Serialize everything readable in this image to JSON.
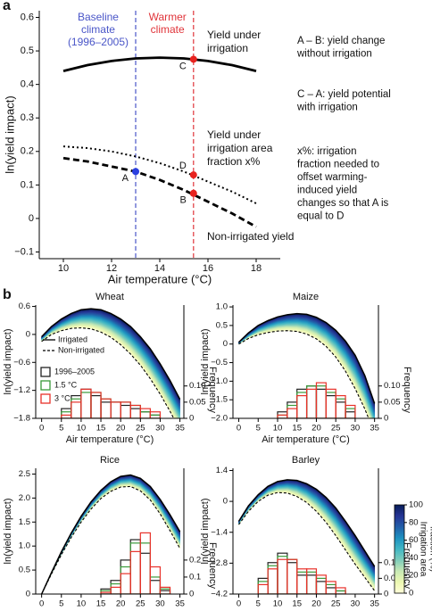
{
  "chart_data": [
    {
      "type": "line",
      "panel_label": "a",
      "xlabel": "Air temperature (°C)",
      "ylabel": "ln(yield impact)",
      "xlim": [
        9,
        19
      ],
      "ylim": [
        -0.12,
        0.62
      ],
      "xticks": [
        10,
        12,
        14,
        16,
        18
      ],
      "yticks": [
        {
          "value": -0.1,
          "label": "−0.1"
        },
        0,
        0.1,
        0.2,
        0.3,
        0.4,
        0.5,
        0.6
      ],
      "x": [
        10,
        11,
        12,
        13,
        14,
        15,
        16,
        17,
        18
      ],
      "series": [
        {
          "name": [
            "Yield under",
            "irrigation"
          ],
          "dash": "solid",
          "color": "#000000",
          "values": [
            0.44,
            0.4575,
            0.47,
            0.4775,
            0.48,
            0.4775,
            0.47,
            0.4575,
            0.44
          ]
        },
        {
          "name": [
            "Yield under",
            "irrigation area",
            "fraction x%"
          ],
          "dash": "dotted",
          "color": "#000000",
          "values": [
            0.215,
            0.21,
            0.2,
            0.185,
            0.165,
            0.14,
            0.11,
            0.08,
            0.045
          ]
        },
        {
          "name": [
            "Non-irrigated yield"
          ],
          "dash": "dashed",
          "color": "#000000",
          "values": [
            0.18,
            0.17,
            0.155,
            0.14,
            0.115,
            0.085,
            0.05,
            0.015,
            -0.025
          ]
        }
      ],
      "vlines": [
        {
          "x": 13,
          "color": "#4a56c8",
          "label": [
            "Baseline",
            "climate",
            "(1996–2005)"
          ]
        },
        {
          "x": 15.4,
          "color": "#e0343a",
          "label": [
            "Warmer",
            "climate"
          ]
        }
      ],
      "points": [
        {
          "label": "A",
          "x": 13,
          "y": 0.14,
          "color": "#2a3fe0",
          "label_side": "below"
        },
        {
          "label": "B",
          "x": 15.4,
          "y": 0.075,
          "color": "#e8231f",
          "label_side": "below"
        },
        {
          "label": "C",
          "x": 15.4,
          "y": 0.475,
          "color": "#e8231f",
          "label_side": "below"
        },
        {
          "label": "D",
          "x": 15.4,
          "y": 0.13,
          "color": "#e8231f",
          "label_side": "above"
        }
      ],
      "notes": [
        [
          "A – B: yield change",
          "without irrigation"
        ],
        [
          "C – A: yield potential",
          "with irrigation"
        ],
        [
          "x%: irrigation",
          "fraction needed to",
          "offset warming-",
          "induced yield",
          "changes so that A is",
          "equal to D"
        ]
      ]
    },
    {
      "type": "line",
      "panel_label": "b",
      "title": "Wheat",
      "xlabel": "Air temperature (°C)",
      "ylabel": "ln(yield impact)",
      "y2label": "Frequency",
      "xlim": [
        -1.5,
        36
      ],
      "ylim": [
        -1.8,
        0.63
      ],
      "xticks": [
        0,
        5,
        10,
        15,
        20,
        25,
        30,
        35
      ],
      "yticks": [
        {
          "value": -1.8,
          "label": "−1.8"
        },
        {
          "value": -1.2,
          "label": "−1.2"
        },
        {
          "value": -0.6,
          "label": "−0.6"
        },
        0,
        0.6
      ],
      "y2lim": [
        0,
        0.35
      ],
      "y2ticks": [
        0,
        0.05,
        {
          "value": 0.1,
          "label": "0.10"
        }
      ],
      "fill": "colorbar",
      "legend": true,
      "x": [
        0,
        2.5,
        5,
        7.5,
        10,
        12.5,
        15,
        17.5,
        20,
        22.5,
        25,
        27.5,
        30,
        32.5,
        35
      ],
      "series": [
        {
          "name": "Irrigated",
          "dash": "solid",
          "color": "#000000",
          "values": [
            -0.05,
            0.17,
            0.33,
            0.45,
            0.53,
            0.55,
            0.53,
            0.45,
            0.33,
            0.17,
            -0.05,
            -0.31,
            -0.63,
            -0.99,
            -1.39
          ]
        },
        {
          "name": "Non-irrigated",
          "dash": "dashed",
          "color": "#000000",
          "values": [
            -0.15,
            0.0,
            0.08,
            0.13,
            0.14,
            0.12,
            0.05,
            -0.06,
            -0.22,
            -0.42,
            -0.66,
            -0.95,
            -1.28,
            -1.65,
            -2.05
          ]
        }
      ],
      "histogram": {
        "bins": [
          5,
          7.5,
          10,
          12.5,
          15,
          17.5,
          20,
          22.5,
          25,
          27.5,
          30
        ],
        "series": [
          {
            "name": "1996–2005",
            "color": "#222222",
            "values": [
              0.03,
              0.07,
              0.09,
              0.07,
              0.05,
              0.05,
              0.04,
              0.03,
              0.02,
              0.01
            ]
          },
          {
            "name": "1.5 °C",
            "color": "#3a9a3a",
            "values": [
              0.02,
              0.06,
              0.08,
              0.08,
              0.06,
              0.05,
              0.05,
              0.04,
              0.02,
              0.01
            ]
          },
          {
            "name": "3 °C",
            "color": "#e8312a",
            "values": [
              0.01,
              0.05,
              0.09,
              0.08,
              0.06,
              0.05,
              0.05,
              0.04,
              0.03,
              0.02
            ]
          }
        ]
      }
    },
    {
      "type": "line",
      "title": "Maize",
      "xlabel": "Air temperature (°C)",
      "ylabel": "ln(yield impact)",
      "y2label": "Frequency",
      "xlim": [
        -1.5,
        36
      ],
      "ylim": [
        -2.0,
        1.05
      ],
      "xticks": [
        0,
        5,
        10,
        15,
        20,
        25,
        30,
        35
      ],
      "yticks": [
        {
          "value": -2,
          "label": "−2.0"
        },
        {
          "value": -1.5,
          "label": "−1.5"
        },
        {
          "value": -1,
          "label": "−1.0"
        },
        {
          "value": -0.5,
          "label": "−0.5"
        },
        0,
        0.5,
        {
          "value": 1,
          "label": "1.0"
        }
      ],
      "y2lim": [
        0,
        0.35
      ],
      "y2ticks": [
        0,
        0.05,
        {
          "value": 0.1,
          "label": "0.10"
        }
      ],
      "fill": "colorbar",
      "x": [
        0,
        2.5,
        5,
        7.5,
        10,
        12.5,
        15,
        17.5,
        20,
        22.5,
        25,
        27.5,
        30,
        32.5,
        35
      ],
      "series": [
        {
          "dash": "solid",
          "color": "#000000",
          "values": [
            0.05,
            0.3,
            0.5,
            0.63,
            0.73,
            0.79,
            0.82,
            0.8,
            0.72,
            0.58,
            0.37,
            0.08,
            -0.3,
            -0.85,
            -1.6
          ]
        },
        {
          "dash": "dashed",
          "color": "#000000",
          "values": [
            0.0,
            0.15,
            0.25,
            0.31,
            0.35,
            0.36,
            0.34,
            0.27,
            0.14,
            -0.06,
            -0.35,
            -0.73,
            -1.2,
            -1.75,
            -2.4
          ]
        }
      ],
      "histogram": {
        "bins": [
          10,
          12.5,
          15,
          17.5,
          20,
          22.5,
          25,
          27.5,
          30
        ],
        "series": [
          {
            "color": "#222222",
            "values": [
              0.02,
              0.05,
              0.09,
              0.1,
              0.09,
              0.07,
              0.05,
              0.02
            ]
          },
          {
            "color": "#3a9a3a",
            "values": [
              0.01,
              0.04,
              0.08,
              0.1,
              0.1,
              0.08,
              0.06,
              0.03
            ]
          },
          {
            "color": "#e8312a",
            "values": [
              0.01,
              0.03,
              0.07,
              0.09,
              0.11,
              0.09,
              0.07,
              0.04
            ]
          }
        ]
      }
    },
    {
      "type": "line",
      "title": "Rice",
      "xlabel": "Air temperature (°C)",
      "ylabel": "ln(yield impact)",
      "y2label": "Frequency",
      "xlim": [
        -1.5,
        36
      ],
      "ylim": [
        0,
        2.62
      ],
      "xticks": [
        0,
        5,
        10,
        15,
        20,
        25,
        30,
        35
      ],
      "yticks": [
        0,
        0.5,
        {
          "value": 1,
          "label": "1.0"
        },
        1.5,
        {
          "value": 2,
          "label": "2.0"
        },
        2.5
      ],
      "y2lim": [
        0,
        0.74
      ],
      "y2ticks": [
        0,
        0.1,
        0.2
      ],
      "fill": "colorbar",
      "x": [
        0,
        2.5,
        5,
        7.5,
        10,
        12.5,
        15,
        17.5,
        20,
        22.5,
        25,
        27.5,
        30,
        32.5,
        35
      ],
      "series": [
        {
          "dash": "solid",
          "color": "#000000",
          "values": [
            0,
            0.45,
            0.88,
            1.27,
            1.62,
            1.92,
            2.16,
            2.34,
            2.45,
            2.48,
            2.41,
            2.24,
            1.97,
            1.65,
            1.3
          ]
        },
        {
          "dash": "dashed",
          "color": "#000000",
          "values": [
            0,
            0.42,
            0.82,
            1.18,
            1.5,
            1.77,
            1.99,
            2.14,
            2.23,
            2.24,
            2.15,
            1.96,
            1.67,
            1.32,
            0.95
          ]
        }
      ],
      "histogram": {
        "bins": [
          15,
          17.5,
          20,
          22.5,
          25,
          27.5,
          30,
          32.5
        ],
        "series": [
          {
            "color": "#222222",
            "values": [
              0.03,
              0.08,
              0.2,
              0.32,
              0.24,
              0.08,
              0.02
            ]
          },
          {
            "color": "#3a9a3a",
            "values": [
              0.02,
              0.06,
              0.16,
              0.3,
              0.3,
              0.1,
              0.03
            ]
          },
          {
            "color": "#e8312a",
            "values": [
              0.01,
              0.04,
              0.12,
              0.25,
              0.36,
              0.16,
              0.04
            ]
          }
        ]
      }
    },
    {
      "type": "line",
      "title": "Barley",
      "xlabel": "Air temperature (°C)",
      "ylabel": "ln(yield impact)",
      "y2label": "Frequency",
      "xlim": [
        -1.5,
        36
      ],
      "ylim": [
        -4.2,
        1.5
      ],
      "xticks": [
        0,
        5,
        10,
        15,
        20,
        25,
        30,
        35
      ],
      "yticks": [
        {
          "value": -4.2,
          "label": "−4.2"
        },
        {
          "value": -2.8,
          "label": "−2.8"
        },
        {
          "value": -1.4,
          "label": "−1.4"
        },
        0,
        1.4
      ],
      "y2lim": [
        0,
        0.4
      ],
      "y2ticks": [
        0,
        0.05,
        {
          "value": 0.1,
          "label": "0.10"
        }
      ],
      "fill": "colorbar",
      "x": [
        0,
        2.5,
        5,
        7.5,
        10,
        12.5,
        15,
        17.5,
        20,
        22.5,
        25,
        27.5,
        30,
        32.5,
        35
      ],
      "series": [
        {
          "dash": "solid",
          "color": "#000000",
          "values": [
            -0.9,
            -0.2,
            0.3,
            0.68,
            0.9,
            0.98,
            0.95,
            0.8,
            0.55,
            0.18,
            -0.3,
            -0.9,
            -1.55,
            -2.25,
            -2.95
          ]
        },
        {
          "dash": "dashed",
          "color": "#000000",
          "values": [
            -1.05,
            -0.45,
            0.0,
            0.28,
            0.4,
            0.38,
            0.22,
            -0.05,
            -0.45,
            -0.95,
            -1.55,
            -2.2,
            -2.85,
            -3.45,
            -4.05
          ]
        }
      ],
      "histogram": {
        "bins": [
          5,
          7.5,
          10,
          12.5,
          15,
          17.5,
          20,
          22.5,
          25,
          27.5
        ],
        "series": [
          {
            "color": "#222222",
            "values": [
              0.05,
              0.1,
              0.13,
              0.1,
              0.06,
              0.06,
              0.04,
              0.02,
              0.01
            ]
          },
          {
            "color": "#3a9a3a",
            "values": [
              0.04,
              0.09,
              0.12,
              0.11,
              0.07,
              0.07,
              0.05,
              0.03,
              0.01
            ]
          },
          {
            "color": "#e8312a",
            "values": [
              0.03,
              0.08,
              0.11,
              0.11,
              0.08,
              0.08,
              0.06,
              0.04,
              0.02
            ]
          }
        ]
      }
    },
    {
      "type": "colorbar",
      "label": [
        "Irrigation area",
        "fraction (%)"
      ],
      "lim": [
        0,
        100
      ],
      "ticks": [
        0,
        20,
        40,
        60,
        80,
        100
      ],
      "colors": [
        "#ffffd9",
        "#edf8b1",
        "#c7e9b4",
        "#7fcdbb",
        "#41b6c4",
        "#1d91c0",
        "#225ea8",
        "#253494",
        "#081d58"
      ]
    }
  ]
}
